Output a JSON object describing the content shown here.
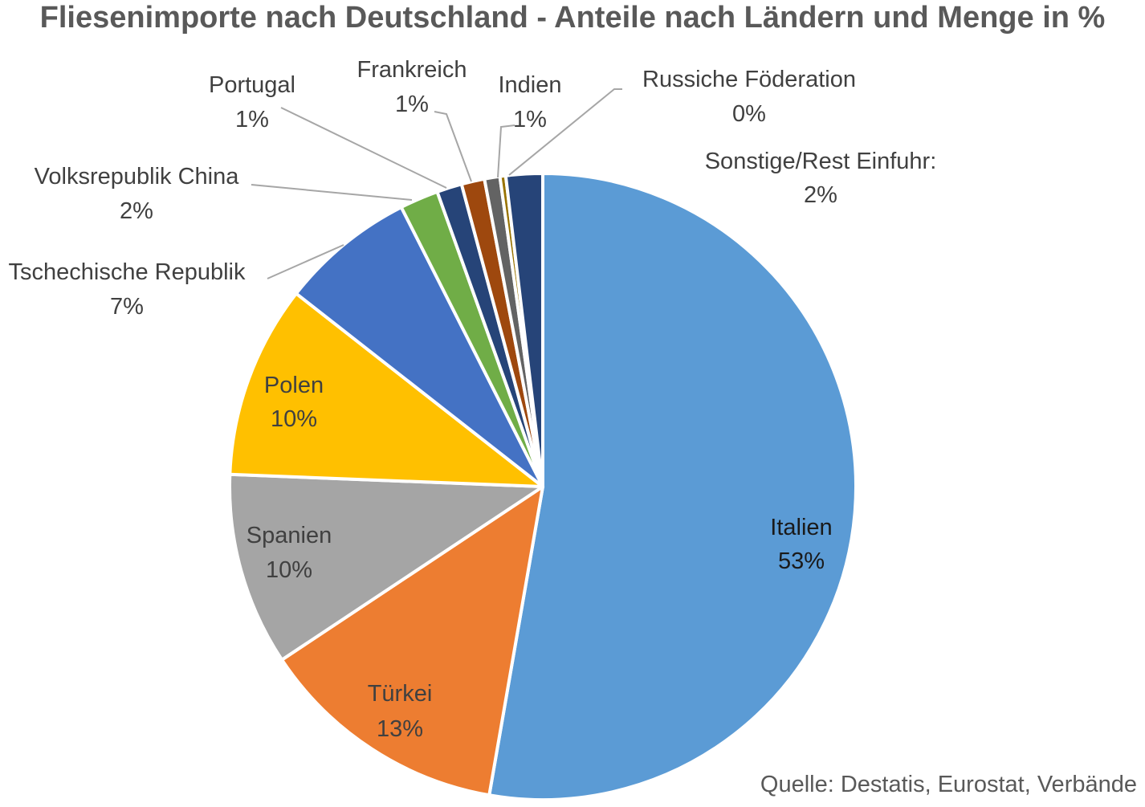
{
  "chart_data": {
    "type": "pie",
    "title": "Fliesenimporte nach Deutschland - Anteile nach Ländern und Menge in %",
    "source": "Quelle: Destatis, Eurostat, Verbände",
    "slices": [
      {
        "label": "Italien",
        "value": 53,
        "value_label": "53%",
        "color": "#5B9BD5"
      },
      {
        "label": "Türkei",
        "value": 13,
        "value_label": "13%",
        "color": "#ED7D31"
      },
      {
        "label": "Spanien",
        "value": 10,
        "value_label": "10%",
        "color": "#A5A5A5"
      },
      {
        "label": "Polen",
        "value": 10,
        "value_label": "10%",
        "color": "#FFC000"
      },
      {
        "label": "Tschechische Republik",
        "value": 7,
        "value_label": "7%",
        "color": "#4472C4"
      },
      {
        "label": "Volksrepublik China",
        "value": 2,
        "value_label": "2%",
        "color": "#70AD47"
      },
      {
        "label": "Portugal",
        "value": 1.3,
        "value_label": "1%",
        "color": "#264478"
      },
      {
        "label": "Frankreich",
        "value": 1.2,
        "value_label": "1%",
        "color": "#9E480E"
      },
      {
        "label": "Indien",
        "value": 0.8,
        "value_label": "1%",
        "color": "#636363"
      },
      {
        "label": "Russiche Föderation",
        "value": 0.3,
        "value_label": "0%",
        "color": "#997300"
      },
      {
        "label": "Sonstige/Rest Einfuhr:",
        "value": 1.9,
        "value_label": "2%",
        "color": "#264478"
      }
    ]
  }
}
